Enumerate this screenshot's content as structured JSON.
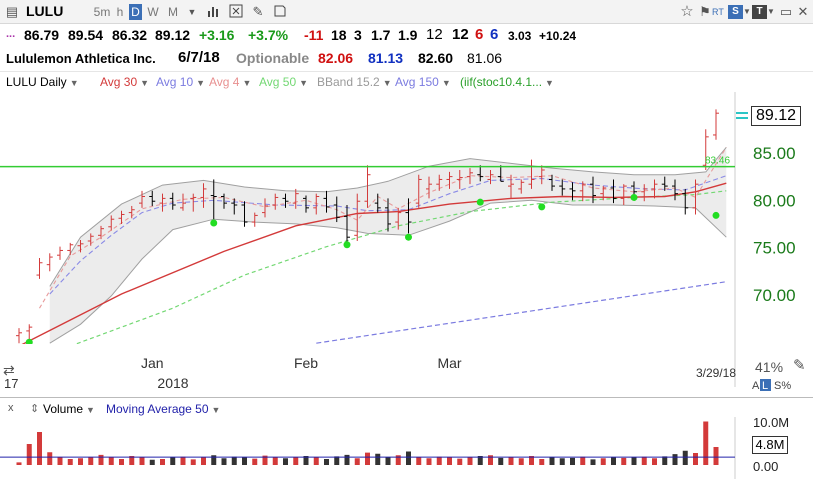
{
  "toolbar": {
    "symbol": "LULU",
    "timeframes": [
      "5m",
      "h",
      "D",
      "W",
      "M"
    ],
    "active_timeframe": "D",
    "rt_label": "RT",
    "s_badge": "S",
    "t_badge": "T"
  },
  "quote": {
    "dots": "...",
    "open": "86.79",
    "high": "89.54",
    "low": "86.32",
    "close": "89.12",
    "change": "+3.16",
    "change_pct": "+3.7%",
    "v1": "-11",
    "v2": "18",
    "v3": "3",
    "v4": "1.7",
    "v5": "1.9",
    "v6": "12",
    "v7": "12",
    "v8": "6",
    "v9": "6",
    "v10": "3.03",
    "v11": "+10.24"
  },
  "info": {
    "company": "Lululemon Athletica Inc.",
    "date": "6/7/18",
    "optionable": "Optionable",
    "n1": "82.06",
    "n2": "81.13",
    "n3": "82.60",
    "n4": "81.06"
  },
  "legend": {
    "items": [
      "LULU Daily",
      "Avg 30",
      "Avg 10",
      "Avg 4",
      "Avg 50",
      "BBand 15.2",
      "Avg 150",
      "(iif(stoc10.4.1..."
    ],
    "colors": [
      "#000000",
      "#d33a3a",
      "#7b7be0",
      "#e89090",
      "#73d873",
      "#9a9a9a",
      "#7b7be0",
      "#2aa02a"
    ]
  },
  "colors": {
    "up": "#d33a3a",
    "down": "#000000",
    "accent": "#3b6fb6",
    "green_line": "#33cc33",
    "vol_blue": "#2222aa"
  },
  "chart_data": {
    "type": "ohlc",
    "symbol": "LULU",
    "period": "Daily",
    "last_price": "89.12",
    "green_line_value": "83.46",
    "y_ticks": [
      "85.00",
      "80.00",
      "75.00",
      "70.00"
    ],
    "y_range": [
      64.5,
      91.5
    ],
    "x_labels": [
      {
        "label": "Jan",
        "index": 13
      },
      {
        "label": "Feb",
        "index": 28
      },
      {
        "label": "Mar",
        "index": 42
      }
    ],
    "year_label": "2018",
    "corner_label": "17",
    "end_date": "3/29/18",
    "pct_label": "41%",
    "scale_labels": [
      "A",
      "L",
      "S%"
    ],
    "bars": [
      [
        65.6,
        66.4,
        64.8,
        65.9
      ],
      [
        66.1,
        66.8,
        64.9,
        66.5
      ],
      [
        72.0,
        73.8,
        71.6,
        73.3
      ],
      [
        73.1,
        74.3,
        72.4,
        73.9
      ],
      [
        74.1,
        75.0,
        73.6,
        74.6
      ],
      [
        74.6,
        75.4,
        74.1,
        75.2
      ],
      [
        75.1,
        75.7,
        74.4,
        75.3
      ],
      [
        75.6,
        76.4,
        75.1,
        76.1
      ],
      [
        76.2,
        77.2,
        75.8,
        76.9
      ],
      [
        77.1,
        78.3,
        76.7,
        77.9
      ],
      [
        78.0,
        78.8,
        77.4,
        78.4
      ],
      [
        78.6,
        79.3,
        78.0,
        78.9
      ],
      [
        79.6,
        80.9,
        79.1,
        80.3
      ],
      [
        80.3,
        80.9,
        79.3,
        79.8
      ],
      [
        79.6,
        80.6,
        78.7,
        80.1
      ],
      [
        80.1,
        80.7,
        78.9,
        79.4
      ],
      [
        79.1,
        80.6,
        78.8,
        79.6
      ],
      [
        80.1,
        80.6,
        78.7,
        80.2
      ],
      [
        80.2,
        81.7,
        79.1,
        81.1
      ],
      [
        80.4,
        82.1,
        77.9,
        80.3
      ],
      [
        80.3,
        80.6,
        79.0,
        79.6
      ],
      [
        79.6,
        80.1,
        78.4,
        79.4
      ],
      [
        79.4,
        79.8,
        77.1,
        77.6
      ],
      [
        77.6,
        78.6,
        77.1,
        78.3
      ],
      [
        78.6,
        80.1,
        78.1,
        79.3
      ],
      [
        79.4,
        80.6,
        78.9,
        80.2
      ],
      [
        80.1,
        80.6,
        79.1,
        79.8
      ],
      [
        79.6,
        81.1,
        79.0,
        80.6
      ],
      [
        80.1,
        80.4,
        78.6,
        79.1
      ],
      [
        79.1,
        80.6,
        78.4,
        80.3
      ],
      [
        80.1,
        80.9,
        78.6,
        79.2
      ],
      [
        79.4,
        80.3,
        77.6,
        78.1
      ],
      [
        78.2,
        79.4,
        75.2,
        76.0
      ],
      [
        76.2,
        80.6,
        75.6,
        79.8
      ],
      [
        79.8,
        83.6,
        79.1,
        82.6
      ],
      [
        79.6,
        80.6,
        78.6,
        79.1
      ],
      [
        79.1,
        80.1,
        76.6,
        77.4
      ],
      [
        77.6,
        79.1,
        76.8,
        78.6
      ],
      [
        78.6,
        80.1,
        76.4,
        77.6
      ],
      [
        79.6,
        82.6,
        79.1,
        82.1
      ],
      [
        81.1,
        82.4,
        80.1,
        81.6
      ],
      [
        81.6,
        82.6,
        80.9,
        82.1
      ],
      [
        82.1,
        82.9,
        81.1,
        82.4
      ],
      [
        82.1,
        83.1,
        81.1,
        82.3
      ],
      [
        82.4,
        83.3,
        81.6,
        82.8
      ],
      [
        82.6,
        83.6,
        81.9,
        82.4
      ],
      [
        82.1,
        83.1,
        81.6,
        82.6
      ],
      [
        82.4,
        83.6,
        81.9,
        81.9
      ],
      [
        81.4,
        82.6,
        80.1,
        81.6
      ],
      [
        81.1,
        82.1,
        80.6,
        81.8
      ],
      [
        81.6,
        84.2,
        81.1,
        82.1
      ],
      [
        82.4,
        83.6,
        81.6,
        83.1
      ],
      [
        82.1,
        82.6,
        80.9,
        81.4
      ],
      [
        81.4,
        82.1,
        80.4,
        81.1
      ],
      [
        81.1,
        81.8,
        79.9,
        80.9
      ],
      [
        80.9,
        81.9,
        79.8,
        81.6
      ],
      [
        81.6,
        82.4,
        79.6,
        80.4
      ],
      [
        80.6,
        81.4,
        79.9,
        81.2
      ],
      [
        81.2,
        82.1,
        79.6,
        80.1
      ],
      [
        80.1,
        81.6,
        79.4,
        81.4
      ],
      [
        81.4,
        81.9,
        80.1,
        80.8
      ],
      [
        80.8,
        81.6,
        79.8,
        81.1
      ],
      [
        81.1,
        82.1,
        80.1,
        81.6
      ],
      [
        81.6,
        82.4,
        80.9,
        81.4
      ],
      [
        81.4,
        82.1,
        79.9,
        80.6
      ],
      [
        80.6,
        81.1,
        78.4,
        79.1
      ],
      [
        79.1,
        82.1,
        78.4,
        81.6
      ],
      [
        83.6,
        87.4,
        83.1,
        86.6
      ],
      [
        86.8,
        89.5,
        86.3,
        89.1
      ]
    ],
    "green_dots": [
      [
        1,
        64.9
      ],
      [
        19,
        77.5
      ],
      [
        32,
        75.2
      ],
      [
        38,
        76.0
      ],
      [
        45,
        79.7
      ],
      [
        51,
        79.2
      ],
      [
        60,
        80.2
      ],
      [
        68,
        78.3
      ]
    ],
    "avg30": [
      [
        0,
        64.5
      ],
      [
        10,
        70.0
      ],
      [
        20,
        74.5
      ],
      [
        27,
        77.2
      ],
      [
        33,
        78.5
      ],
      [
        37,
        78.7
      ],
      [
        42,
        79.5
      ],
      [
        48,
        80.1
      ],
      [
        53,
        80.3
      ],
      [
        58,
        80.2
      ],
      [
        63,
        80.3
      ],
      [
        66,
        80.8
      ],
      [
        69,
        81.7
      ]
    ],
    "avg50": [
      [
        5,
        64.5
      ],
      [
        15,
        68.5
      ],
      [
        22,
        72.0
      ],
      [
        30,
        75.0
      ],
      [
        37,
        77.2
      ],
      [
        44,
        78.7
      ],
      [
        52,
        79.7
      ],
      [
        60,
        80.2
      ],
      [
        66,
        80.5
      ],
      [
        69,
        80.9
      ]
    ],
    "avg10": [
      [
        3,
        70.0
      ],
      [
        6,
        73.5
      ],
      [
        9,
        76.2
      ],
      [
        12,
        78.6
      ],
      [
        15,
        79.6
      ],
      [
        19,
        79.9
      ],
      [
        25,
        79.4
      ],
      [
        31,
        79.3
      ],
      [
        34,
        78.8
      ],
      [
        38,
        78.9
      ],
      [
        42,
        80.6
      ],
      [
        46,
        82.0
      ],
      [
        51,
        82.2
      ],
      [
        56,
        81.5
      ],
      [
        61,
        81.1
      ],
      [
        65,
        81.0
      ],
      [
        69,
        82.5
      ]
    ],
    "avg4": [
      [
        2,
        68.5
      ],
      [
        5,
        74.0
      ],
      [
        8,
        76.0
      ],
      [
        12,
        79.0
      ],
      [
        16,
        80.0
      ],
      [
        20,
        80.2
      ],
      [
        24,
        79.2
      ],
      [
        28,
        79.9
      ],
      [
        31,
        78.9
      ],
      [
        33,
        77.8
      ],
      [
        35,
        80.3
      ],
      [
        37,
        79.0
      ],
      [
        40,
        80.7
      ],
      [
        44,
        82.5
      ],
      [
        48,
        82.3
      ],
      [
        52,
        82.5
      ],
      [
        56,
        81.2
      ],
      [
        60,
        80.8
      ],
      [
        64,
        81.2
      ],
      [
        66,
        80.2
      ],
      [
        67,
        82.0
      ],
      [
        69,
        85.5
      ]
    ],
    "avg150": [
      [
        29,
        64.8
      ],
      [
        69,
        71.3
      ]
    ],
    "bband_upper": [
      [
        3,
        70.8
      ],
      [
        6,
        76.0
      ],
      [
        10,
        79.5
      ],
      [
        14,
        81.5
      ],
      [
        18,
        82.0
      ],
      [
        22,
        81.3
      ],
      [
        26,
        80.9
      ],
      [
        30,
        80.8
      ],
      [
        33,
        81.2
      ],
      [
        36,
        81.9
      ],
      [
        40,
        83.5
      ],
      [
        44,
        84.3
      ],
      [
        48,
        83.8
      ],
      [
        52,
        83.3
      ],
      [
        56,
        82.9
      ],
      [
        60,
        82.6
      ],
      [
        64,
        82.6
      ],
      [
        67,
        82.9
      ],
      [
        69,
        85.5
      ]
    ],
    "bband_lower": [
      [
        3,
        64.8
      ],
      [
        6,
        66.8
      ],
      [
        9,
        69.8
      ],
      [
        12,
        73.7
      ],
      [
        15,
        76.8
      ],
      [
        19,
        77.9
      ],
      [
        23,
        77.6
      ],
      [
        27,
        77.4
      ],
      [
        31,
        77.0
      ],
      [
        34,
        76.4
      ],
      [
        38,
        76.2
      ],
      [
        42,
        77.7
      ],
      [
        46,
        79.6
      ],
      [
        50,
        79.9
      ],
      [
        54,
        79.4
      ],
      [
        58,
        79.4
      ],
      [
        62,
        79.3
      ],
      [
        66,
        79.1
      ],
      [
        69,
        76.0
      ]
    ],
    "volume": {
      "title": "Volume",
      "ma_label": "Moving Average 50",
      "y_ticks": [
        "10.0M",
        "0.00"
      ],
      "last_label": "4.8M",
      "max": 12.0,
      "ma_value": 2.1,
      "values": [
        0.7,
        5.6,
        8.8,
        3.4,
        2.1,
        1.6,
        1.8,
        2.1,
        2.7,
        2.0,
        1.6,
        2.4,
        2.0,
        1.4,
        1.6,
        2.0,
        2.2,
        1.5,
        2.1,
        2.6,
        1.8,
        2.2,
        2.1,
        1.7,
        2.5,
        2.1,
        1.8,
        2.0,
        2.4,
        2.0,
        1.6,
        2.3,
        2.7,
        1.8,
        3.3,
        3.0,
        2.1,
        2.6,
        3.6,
        2.0,
        1.8,
        2.2,
        2.0,
        1.7,
        2.1,
        2.4,
        2.6,
        1.9,
        2.0,
        1.8,
        2.4,
        1.6,
        2.0,
        1.8,
        1.9,
        2.2,
        1.5,
        1.8,
        2.0,
        1.9,
        2.1,
        2.2,
        1.8,
        2.3,
        2.9,
        3.8,
        3.2,
        11.6,
        4.8
      ]
    }
  }
}
